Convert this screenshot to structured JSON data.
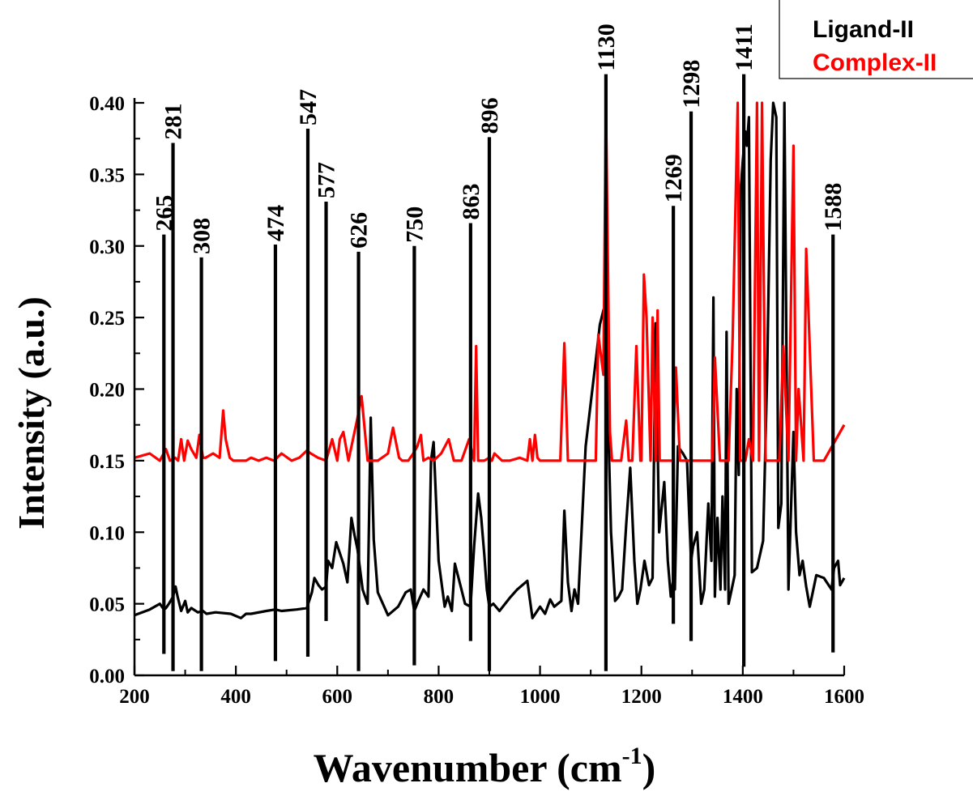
{
  "chart_data": {
    "type": "line",
    "xlabel": "Wavenumber (cm",
    "xlabel_sup": "-1",
    "xlabel_close": ")",
    "ylabel": "Intensity (a.u.)",
    "xlim": [
      200,
      1600
    ],
    "ylim": [
      0.0,
      0.4
    ],
    "xticks": [
      "200",
      "400",
      "600",
      "800",
      "1000",
      "1200",
      "1400",
      "1600"
    ],
    "yticks": [
      "0.00",
      "0.05",
      "0.10",
      "0.15",
      "0.20",
      "0.25",
      "0.30",
      "0.35",
      "0.40"
    ],
    "grid": false,
    "legend_position": "top-right",
    "series": [
      {
        "name": "Ligand-II",
        "color": "#000000",
        "x": [
          200,
          230,
          250,
          258,
          262,
          268,
          276,
          281,
          285,
          292,
          300,
          305,
          312,
          325,
          335,
          342,
          360,
          390,
          410,
          420,
          430,
          460,
          478,
          490,
          520,
          540,
          550,
          555,
          563,
          570,
          578,
          582,
          590,
          598,
          612,
          620,
          628,
          634,
          640,
          650,
          660,
          666,
          672,
          680,
          700,
          720,
          735,
          745,
          752,
          760,
          770,
          780,
          785,
          790,
          800,
          812,
          818,
          826,
          832,
          845,
          852,
          863,
          870,
          878,
          884,
          890,
          895,
          900,
          908,
          920,
          940,
          955,
          975,
          985,
          1000,
          1010,
          1020,
          1028,
          1035,
          1042,
          1048,
          1055,
          1062,
          1068,
          1075,
          1090,
          1100,
          1110,
          1118,
          1125,
          1130,
          1135,
          1140,
          1148,
          1155,
          1162,
          1170,
          1178,
          1186,
          1192,
          1198,
          1206,
          1215,
          1222,
          1228,
          1235,
          1245,
          1252,
          1258,
          1262,
          1266,
          1272,
          1282,
          1290,
          1298,
          1302,
          1310,
          1318,
          1324,
          1332,
          1338,
          1342,
          1345,
          1350,
          1356,
          1360,
          1365,
          1368,
          1372,
          1378,
          1384,
          1388,
          1392,
          1396,
          1400,
          1405,
          1408,
          1412,
          1418,
          1428,
          1440,
          1448,
          1455,
          1460,
          1466,
          1470,
          1476,
          1482,
          1490,
          1500,
          1505,
          1512,
          1518,
          1525,
          1532,
          1545,
          1560,
          1575,
          1580,
          1588,
          1592,
          1600
        ],
        "y": [
          0.042,
          0.046,
          0.05,
          0.046,
          0.047,
          0.05,
          0.055,
          0.062,
          0.055,
          0.045,
          0.052,
          0.044,
          0.047,
          0.044,
          0.045,
          0.043,
          0.044,
          0.043,
          0.04,
          0.043,
          0.043,
          0.045,
          0.046,
          0.045,
          0.046,
          0.047,
          0.058,
          0.068,
          0.063,
          0.06,
          0.062,
          0.08,
          0.075,
          0.093,
          0.078,
          0.065,
          0.11,
          0.098,
          0.088,
          0.06,
          0.05,
          0.18,
          0.095,
          0.058,
          0.042,
          0.048,
          0.058,
          0.06,
          0.045,
          0.052,
          0.06,
          0.055,
          0.15,
          0.163,
          0.08,
          0.048,
          0.055,
          0.045,
          0.078,
          0.06,
          0.05,
          0.048,
          0.09,
          0.127,
          0.11,
          0.085,
          0.06,
          0.048,
          0.05,
          0.045,
          0.054,
          0.06,
          0.066,
          0.04,
          0.048,
          0.043,
          0.053,
          0.048,
          0.05,
          0.052,
          0.115,
          0.065,
          0.045,
          0.06,
          0.05,
          0.16,
          0.19,
          0.22,
          0.245,
          0.255,
          0.26,
          0.17,
          0.1,
          0.052,
          0.055,
          0.06,
          0.105,
          0.145,
          0.08,
          0.05,
          0.06,
          0.08,
          0.063,
          0.068,
          0.246,
          0.1,
          0.135,
          0.08,
          0.055,
          0.065,
          0.06,
          0.16,
          0.155,
          0.15,
          0.08,
          0.09,
          0.1,
          0.05,
          0.06,
          0.12,
          0.08,
          0.264,
          0.055,
          0.11,
          0.06,
          0.125,
          0.06,
          0.24,
          0.05,
          0.06,
          0.07,
          0.2,
          0.14,
          0.34,
          0.36,
          0.38,
          0.37,
          0.39,
          0.072,
          0.075,
          0.094,
          0.21,
          0.36,
          0.4,
          0.39,
          0.103,
          0.12,
          0.4,
          0.06,
          0.17,
          0.1,
          0.07,
          0.08,
          0.062,
          0.048,
          0.07,
          0.068,
          0.06,
          0.075,
          0.08,
          0.063,
          0.068
        ]
      },
      {
        "name": "Complex-II",
        "color": "#ff0000",
        "x": [
          200,
          230,
          250,
          262,
          270,
          280,
          286,
          292,
          298,
          305,
          312,
          322,
          328,
          335,
          340,
          355,
          368,
          375,
          380,
          388,
          395,
          420,
          430,
          445,
          460,
          475,
          490,
          510,
          525,
          540,
          548,
          562,
          578,
          590,
          600,
          605,
          612,
          622,
          640,
          648,
          660,
          680,
          700,
          710,
          722,
          728,
          735,
          740,
          750,
          758,
          765,
          770,
          780,
          790,
          805,
          820,
          830,
          845,
          860,
          870,
          874,
          878,
          882,
          890,
          900,
          905,
          910,
          925,
          940,
          960,
          975,
          980,
          985,
          990,
          995,
          1000,
          1015,
          1030,
          1040,
          1048,
          1055,
          1062,
          1072,
          1080,
          1090,
          1100,
          1110,
          1115,
          1125,
          1130,
          1138,
          1142,
          1150,
          1160,
          1170,
          1175,
          1182,
          1190,
          1198,
          1200,
          1205,
          1210,
          1218,
          1222,
          1228,
          1232,
          1236,
          1240,
          1250,
          1262,
          1268,
          1276,
          1285,
          1300,
          1310,
          1320,
          1330,
          1340,
          1345,
          1355,
          1360,
          1365,
          1372,
          1380,
          1390,
          1395,
          1405,
          1412,
          1420,
          1428,
          1432,
          1438,
          1445,
          1450,
          1458,
          1465,
          1472,
          1480,
          1490,
          1500,
          1505,
          1510,
          1520,
          1525,
          1540,
          1560,
          1600
        ],
        "y": [
          0.152,
          0.155,
          0.15,
          0.158,
          0.15,
          0.152,
          0.15,
          0.165,
          0.15,
          0.164,
          0.158,
          0.152,
          0.168,
          0.152,
          0.152,
          0.155,
          0.152,
          0.185,
          0.165,
          0.152,
          0.15,
          0.15,
          0.152,
          0.15,
          0.152,
          0.15,
          0.155,
          0.15,
          0.152,
          0.157,
          0.155,
          0.152,
          0.15,
          0.165,
          0.15,
          0.165,
          0.17,
          0.15,
          0.18,
          0.195,
          0.15,
          0.15,
          0.155,
          0.173,
          0.152,
          0.15,
          0.15,
          0.15,
          0.155,
          0.16,
          0.168,
          0.15,
          0.152,
          0.15,
          0.155,
          0.165,
          0.15,
          0.15,
          0.165,
          0.15,
          0.23,
          0.15,
          0.15,
          0.15,
          0.152,
          0.15,
          0.155,
          0.15,
          0.15,
          0.152,
          0.15,
          0.165,
          0.15,
          0.168,
          0.152,
          0.15,
          0.15,
          0.15,
          0.15,
          0.232,
          0.15,
          0.15,
          0.15,
          0.15,
          0.15,
          0.15,
          0.15,
          0.238,
          0.21,
          0.4,
          0.17,
          0.15,
          0.15,
          0.15,
          0.178,
          0.15,
          0.15,
          0.23,
          0.15,
          0.15,
          0.28,
          0.25,
          0.15,
          0.25,
          0.15,
          0.255,
          0.15,
          0.15,
          0.15,
          0.15,
          0.215,
          0.15,
          0.15,
          0.15,
          0.15,
          0.15,
          0.15,
          0.15,
          0.222,
          0.15,
          0.15,
          0.15,
          0.15,
          0.235,
          0.4,
          0.15,
          0.15,
          0.165,
          0.15,
          0.4,
          0.15,
          0.4,
          0.15,
          0.15,
          0.15,
          0.15,
          0.15,
          0.23,
          0.15,
          0.37,
          0.15,
          0.2,
          0.15,
          0.298,
          0.15,
          0.15,
          0.175
        ]
      }
    ],
    "peak_markers": [
      {
        "label": "265",
        "x": 258,
        "top": 0.308,
        "bottom": 0.015
      },
      {
        "label": "281",
        "x": 276,
        "top": 0.372,
        "bottom": 0.003
      },
      {
        "label": "308",
        "x": 332,
        "top": 0.292,
        "bottom": 0.003
      },
      {
        "label": "474",
        "x": 478,
        "top": 0.301,
        "bottom": 0.01
      },
      {
        "label": "547",
        "x": 542,
        "top": 0.382,
        "bottom": 0.013
      },
      {
        "label": "577",
        "x": 578,
        "top": 0.331,
        "bottom": 0.038
      },
      {
        "label": "626",
        "x": 642,
        "top": 0.296,
        "bottom": 0.003
      },
      {
        "label": "750",
        "x": 752,
        "top": 0.3,
        "bottom": 0.007
      },
      {
        "label": "863",
        "x": 863,
        "top": 0.316,
        "bottom": 0.024
      },
      {
        "label": "896",
        "x": 900,
        "top": 0.376,
        "bottom": 0.003
      },
      {
        "label": "1130",
        "x": 1130,
        "top": 0.42,
        "bottom": 0.003
      },
      {
        "label": "1269",
        "x": 1263,
        "top": 0.328,
        "bottom": 0.036
      },
      {
        "label": "1298",
        "x": 1298,
        "top": 0.394,
        "bottom": 0.024
      },
      {
        "label": "1411",
        "x": 1402,
        "top": 0.42,
        "bottom": 0.006
      },
      {
        "label": "1588",
        "x": 1578,
        "top": 0.308,
        "bottom": 0.016
      }
    ]
  }
}
